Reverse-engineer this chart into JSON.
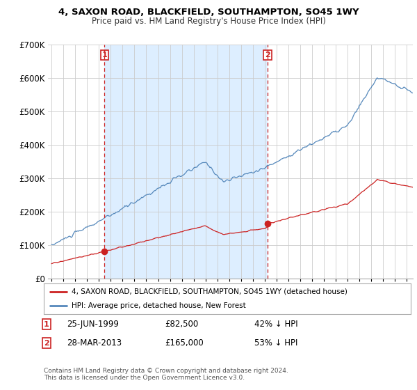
{
  "title": "4, SAXON ROAD, BLACKFIELD, SOUTHAMPTON, SO45 1WY",
  "subtitle": "Price paid vs. HM Land Registry's House Price Index (HPI)",
  "background_color": "#ffffff",
  "grid_color": "#cccccc",
  "hpi_color": "#5588bb",
  "hpi_fill_color": "#ddeeff",
  "price_color": "#cc2222",
  "vline_color": "#cc2222",
  "sale1_year": 1999.48,
  "sale1_price": 82500,
  "sale2_year": 2013.23,
  "sale2_price": 165000,
  "annotation1_date": "25-JUN-1999",
  "annotation1_price": "£82,500",
  "annotation1_pct": "42% ↓ HPI",
  "annotation2_date": "28-MAR-2013",
  "annotation2_price": "£165,000",
  "annotation2_pct": "53% ↓ HPI",
  "legend_label1": "4, SAXON ROAD, BLACKFIELD, SOUTHAMPTON, SO45 1WY (detached house)",
  "legend_label2": "HPI: Average price, detached house, New Forest",
  "footnote": "Contains HM Land Registry data © Crown copyright and database right 2024.\nThis data is licensed under the Open Government Licence v3.0.",
  "ylim_max": 700000,
  "xlim_start": 1994.7,
  "xlim_end": 2025.5
}
